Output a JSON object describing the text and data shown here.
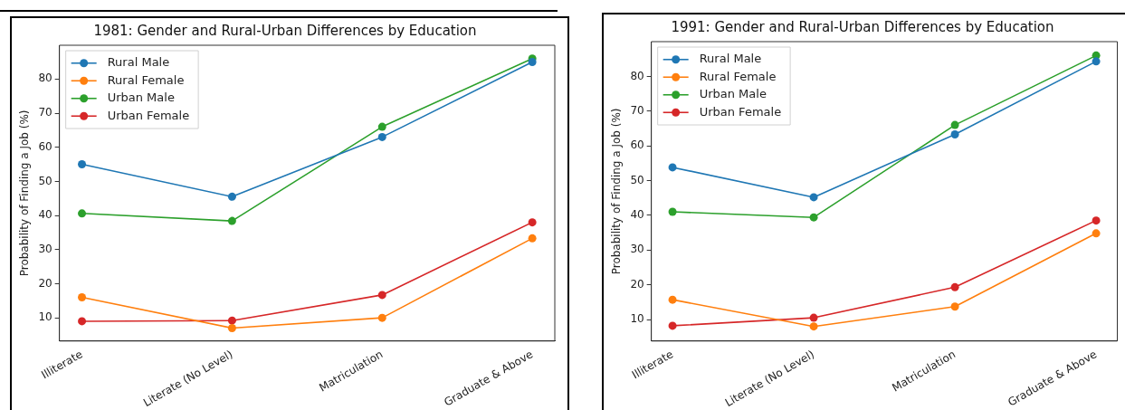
{
  "chart_data": [
    {
      "type": "line",
      "title": "1981: Gender and Rural-Urban Differences by Education",
      "ylabel": "Probability of Finding a Job (%)",
      "categories": [
        "Illiterate",
        "Literate (No Level)",
        "Matriculation",
        "Graduate & Above"
      ],
      "series": [
        {
          "name": "Rural Male",
          "color": "#1f77b4",
          "values": [
            55,
            45.5,
            63,
            85
          ]
        },
        {
          "name": "Rural Female",
          "color": "#ff7f0e",
          "values": [
            16,
            7,
            10,
            33.3
          ]
        },
        {
          "name": "Urban Male",
          "color": "#2ca02c",
          "values": [
            40.6,
            38.4,
            66,
            86
          ]
        },
        {
          "name": "Urban Female",
          "color": "#d62728",
          "values": [
            9,
            9.2,
            16.7,
            38
          ]
        }
      ],
      "ylim": [
        3.2,
        89.9
      ],
      "yticks": [
        10,
        20,
        30,
        40,
        50,
        60,
        70,
        80
      ],
      "grid": false,
      "legend": "top left",
      "marker": "circle",
      "line_style": "solid"
    },
    {
      "type": "line",
      "title": "1991: Gender and Rural-Urban Differences by Education",
      "ylabel": "Probability of Finding a Job (%)",
      "categories": [
        "Illiterate",
        "Literate (No Level)",
        "Matriculation",
        "Graduate & Above"
      ],
      "series": [
        {
          "name": "Rural Male",
          "color": "#1f77b4",
          "values": [
            53.8,
            45.2,
            63.3,
            84.3
          ]
        },
        {
          "name": "Rural Female",
          "color": "#ff7f0e",
          "values": [
            15.7,
            8,
            13.7,
            34.8
          ]
        },
        {
          "name": "Urban Male",
          "color": "#2ca02c",
          "values": [
            41,
            39.4,
            66,
            86
          ]
        },
        {
          "name": "Urban Female",
          "color": "#d62728",
          "values": [
            8.2,
            10.5,
            19.3,
            38.5
          ]
        }
      ],
      "ylim": [
        3.8,
        90
      ],
      "yticks": [
        10,
        20,
        30,
        40,
        50,
        60,
        70,
        80
      ],
      "grid": false,
      "legend": "top left",
      "marker": "circle",
      "line_style": "solid"
    }
  ]
}
